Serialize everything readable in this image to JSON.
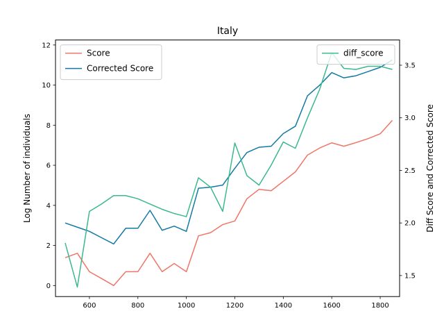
{
  "chart_data": {
    "type": "line",
    "title": "Italy",
    "xlabel": "",
    "ylabel_left": "Log Number of individuals",
    "ylabel_right": "Diff Score and Corrected Score",
    "x": [
      500,
      550,
      600,
      650,
      700,
      750,
      800,
      850,
      900,
      950,
      1000,
      1050,
      1100,
      1150,
      1200,
      1250,
      1300,
      1350,
      1400,
      1450,
      1500,
      1550,
      1600,
      1650,
      1700,
      1750,
      1800,
      1850
    ],
    "xlim": [
      460,
      1880
    ],
    "ylim_left": [
      -0.55,
      12.25
    ],
    "ylim_right": [
      1.3,
      3.74
    ],
    "xticks": [
      600,
      800,
      1000,
      1200,
      1400,
      1600,
      1800
    ],
    "yticks_left": [
      0,
      2,
      4,
      6,
      8,
      10,
      12
    ],
    "yticks_right": [
      1.5,
      2.0,
      2.5,
      3.0,
      3.5
    ],
    "xtick_labels": [
      "600",
      "800",
      "1000",
      "1200",
      "1400",
      "1600",
      "1800"
    ],
    "ytick_labels_left": [
      "0",
      "2",
      "4",
      "6",
      "8",
      "10",
      "12"
    ],
    "ytick_labels_right": [
      "1.5",
      "2.0",
      "2.5",
      "3.0",
      "3.5"
    ],
    "series": [
      {
        "name": "Score",
        "axis": "left",
        "color": "#f07467",
        "values": [
          1.39,
          1.61,
          0.69,
          0.35,
          0.0,
          0.69,
          0.69,
          1.61,
          0.69,
          1.1,
          0.69,
          2.48,
          2.64,
          3.04,
          3.22,
          4.33,
          4.8,
          4.73,
          5.2,
          5.67,
          6.51,
          6.86,
          7.12,
          6.95,
          7.13,
          7.33,
          7.57,
          8.24
        ]
      },
      {
        "name": "Corrected Score",
        "axis": "right",
        "color": "#1279a3",
        "values": [
          2.0,
          1.96,
          1.92,
          1.86,
          1.8,
          1.95,
          1.95,
          2.12,
          1.93,
          1.97,
          1.92,
          2.33,
          2.34,
          2.36,
          2.52,
          2.67,
          2.72,
          2.73,
          2.85,
          2.92,
          3.21,
          3.31,
          3.43,
          3.38,
          3.4,
          3.44,
          3.48,
          3.55
        ]
      },
      {
        "name": "diff_score",
        "axis": "right",
        "color": "#3bb88e",
        "values": [
          1.81,
          1.39,
          2.11,
          2.18,
          2.26,
          2.26,
          2.23,
          2.18,
          2.13,
          2.09,
          2.06,
          2.43,
          2.34,
          2.11,
          2.76,
          2.45,
          2.36,
          2.55,
          2.77,
          2.71,
          3.0,
          3.27,
          3.62,
          3.47,
          3.46,
          3.49,
          3.49,
          3.46
        ]
      }
    ],
    "legends": [
      {
        "position": "upper-left",
        "entries": [
          "Score",
          "Corrected Score"
        ]
      },
      {
        "position": "upper-right",
        "entries": [
          "diff_score"
        ]
      }
    ]
  }
}
